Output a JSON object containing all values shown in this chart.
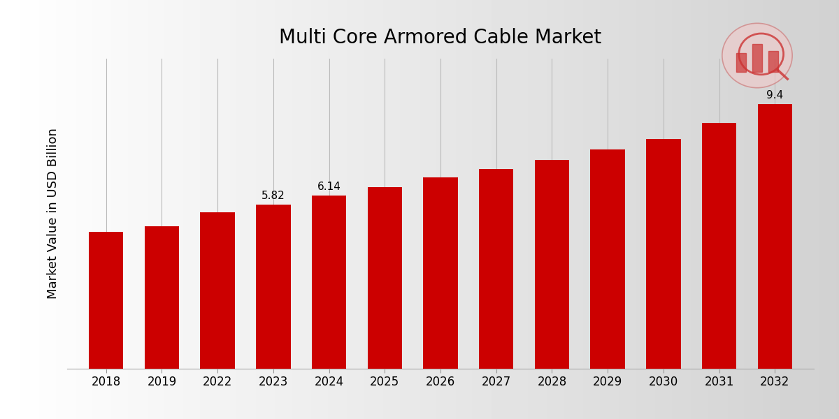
{
  "title": "Multi Core Armored Cable Market",
  "ylabel": "Market Value in USD Billion",
  "categories": [
    "2018",
    "2019",
    "2022",
    "2023",
    "2024",
    "2025",
    "2026",
    "2027",
    "2028",
    "2029",
    "2030",
    "2031",
    "2032"
  ],
  "values": [
    4.85,
    5.05,
    5.55,
    5.82,
    6.14,
    6.45,
    6.78,
    7.08,
    7.42,
    7.78,
    8.15,
    8.72,
    9.4
  ],
  "bar_color": "#CC0000",
  "label_values": {
    "2023": "5.82",
    "2024": "6.14",
    "2032": "9.4"
  },
  "background_color": "#e0e0e0",
  "title_fontsize": 20,
  "ylabel_fontsize": 13,
  "tick_fontsize": 12,
  "label_fontsize": 11,
  "grid_color": "#bbbbbb",
  "ylim": [
    0,
    11.0
  ],
  "bottom_bar_color": "#CC0000",
  "logo_circle_color": "#e8b0b0",
  "logo_edge_color": "#cc6666"
}
